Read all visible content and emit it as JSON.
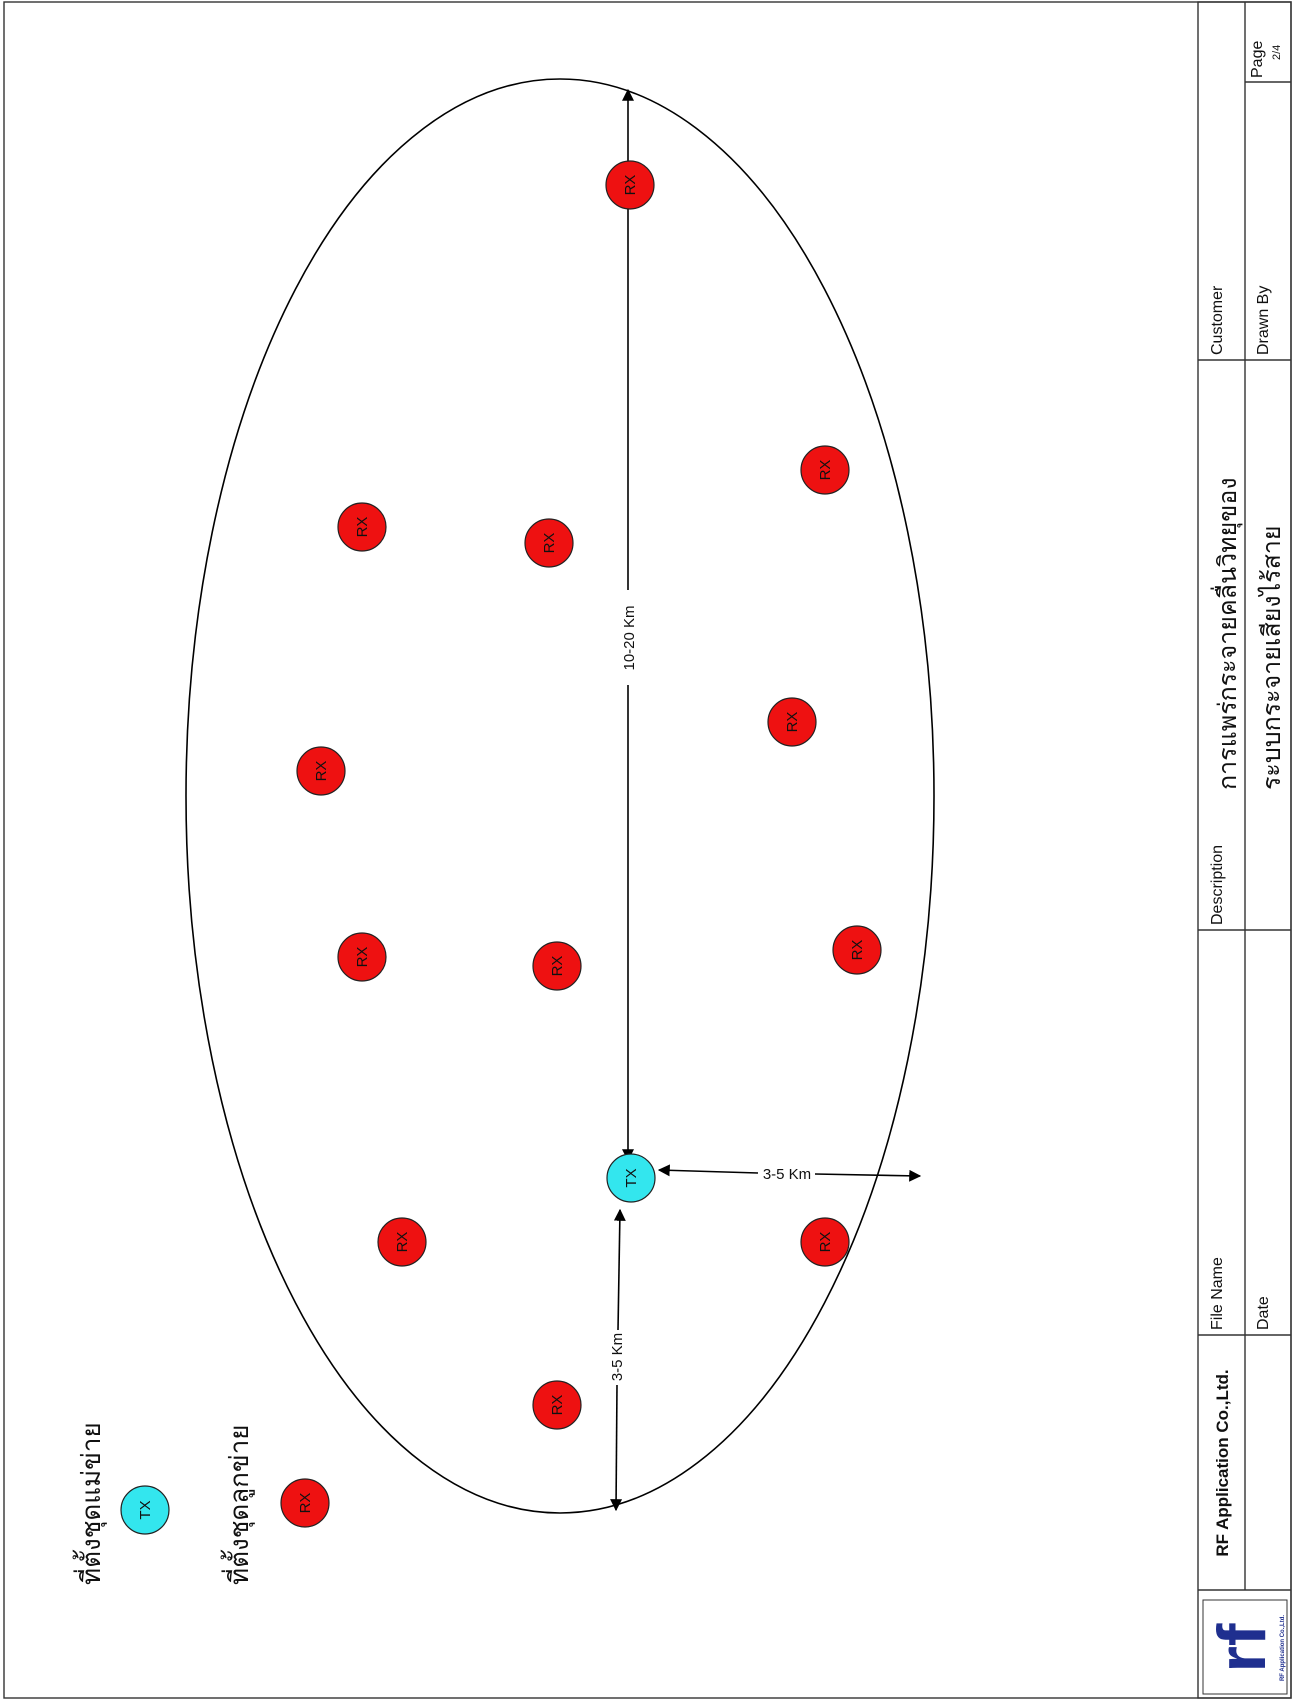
{
  "legend": {
    "tx_label": "ที่ตั้งชุดแม่ข่าย",
    "rx_label": "ที่ตั้งชุดลูกข่าย",
    "tx_symbol": "TX",
    "rx_symbol": "RX"
  },
  "nodes": {
    "tx_text": "TX",
    "rx_text": "RX"
  },
  "dimensions": {
    "long_axis": "10-20 Km",
    "short_axis_right": "3-5 Km",
    "short_axis_left": "3-5 Km"
  },
  "title_block": {
    "company": "RF Application Co.,Ltd.",
    "logo_text": "rf",
    "logo_caption": "RF Application Co.,Ltd.",
    "file_name_label": "File Name",
    "date_label": "Date",
    "description_label": "Description",
    "description_line1": "การแพร่กระจายคลื่นวิทยุของ",
    "description_line2": "ระบบกระจายเสียงไร้สาย",
    "customer_label": "Customer",
    "drawn_by_label": "Drawn By",
    "page_label": "Page",
    "page_value": "2/4"
  },
  "colors": {
    "tx_fill": "#33e6ee",
    "rx_fill": "#ee1111",
    "logo_blue": "#1f2f8f"
  }
}
